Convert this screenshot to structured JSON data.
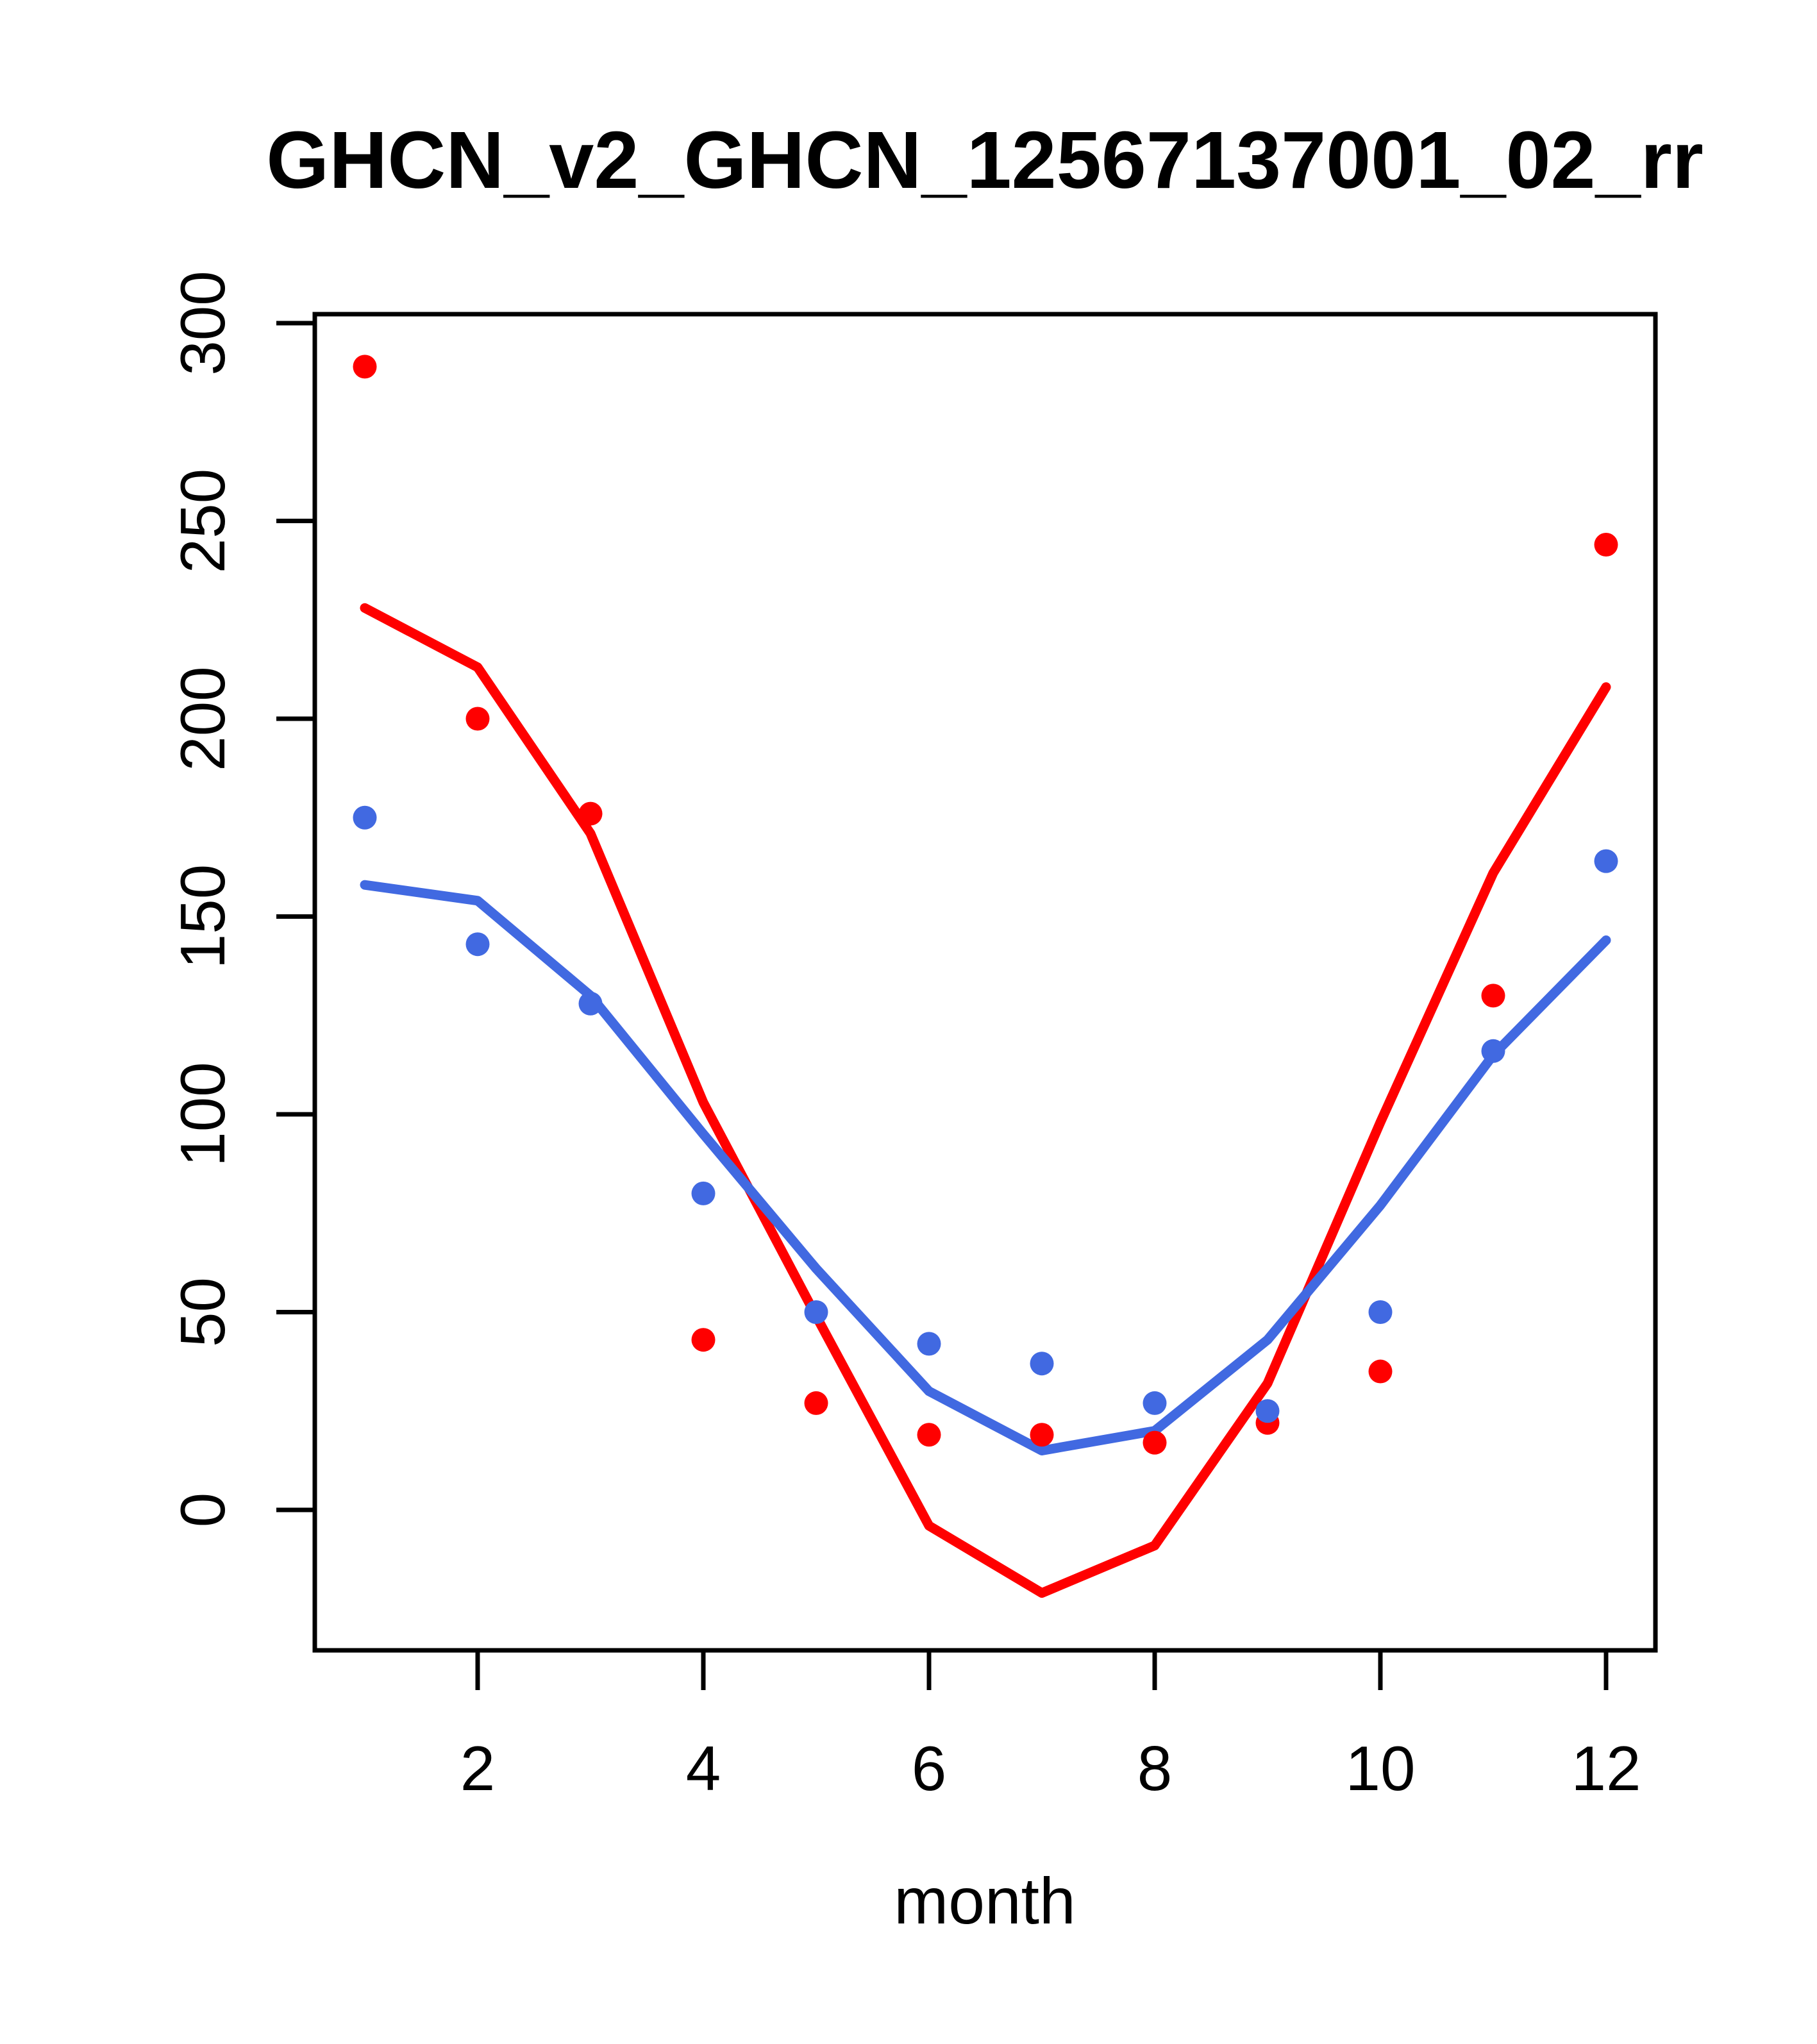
{
  "chart_data": {
    "type": "scatter",
    "title": "GHCN_v2_GHCN_12567137001_02_rr",
    "xlabel": "month",
    "ylabel": "",
    "x": [
      1,
      2,
      3,
      4,
      5,
      6,
      7,
      8,
      9,
      10,
      11,
      12
    ],
    "x_ticks": [
      2,
      4,
      6,
      8,
      10,
      12
    ],
    "y_ticks": [
      0,
      50,
      100,
      150,
      200,
      250,
      300
    ],
    "xlim": [
      0.56,
      12.44
    ],
    "ylim": [
      -36,
      302
    ],
    "grid": false,
    "legend": "none",
    "colors": {
      "series_a": "#ff0000",
      "series_b": "#4169e1",
      "axis": "#000000",
      "background": "#ffffff"
    },
    "series": [
      {
        "name": "red-points",
        "kind": "scatter",
        "color": "#ff0000",
        "values": [
          289,
          200,
          176,
          43,
          27,
          19,
          19,
          17,
          22,
          35,
          130,
          244
        ]
      },
      {
        "name": "blue-points",
        "kind": "scatter",
        "color": "#4169e1",
        "values": [
          175,
          143,
          128,
          80,
          50,
          42,
          37,
          27,
          25,
          50,
          116,
          164
        ]
      },
      {
        "name": "red-fit-line",
        "kind": "line",
        "color": "#ff0000",
        "values": [
          228,
          213,
          171,
          103,
          49,
          -4,
          -21,
          -9,
          32,
          98,
          161,
          208
        ]
      },
      {
        "name": "blue-fit-line",
        "kind": "line",
        "color": "#4169e1",
        "values": [
          158,
          154,
          130,
          95,
          61,
          30,
          15,
          20,
          43,
          77,
          115,
          144
        ]
      }
    ]
  }
}
